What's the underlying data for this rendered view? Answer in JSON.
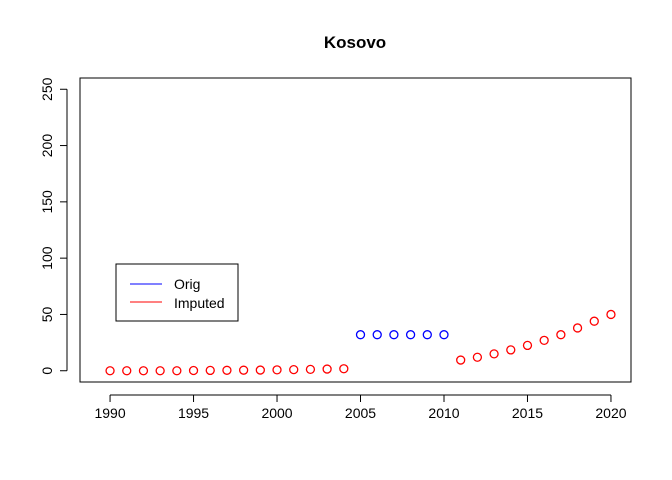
{
  "chart_data": {
    "type": "scatter",
    "title": "Kosovo",
    "xlabel": "",
    "ylabel": "",
    "xlim": [
      1988.2,
      2021.2
    ],
    "ylim": [
      -10,
      260
    ],
    "x_ticks": [
      1990,
      1995,
      2000,
      2005,
      2010,
      2015,
      2020
    ],
    "y_ticks": [
      0,
      50,
      100,
      150,
      200,
      250
    ],
    "grid": false,
    "legend": {
      "position": "left-center",
      "entries": [
        {
          "label": "Orig",
          "color": "#0000ff"
        },
        {
          "label": "Imputed",
          "color": "#ff0000"
        }
      ]
    },
    "series": [
      {
        "name": "Orig",
        "color": "#0000ff",
        "marker": "open-circle",
        "x": [
          2005,
          2006,
          2007,
          2008,
          2009,
          2010
        ],
        "y": [
          32,
          32,
          32,
          32,
          32,
          32
        ]
      },
      {
        "name": "Imputed",
        "color": "#ff0000",
        "marker": "open-circle",
        "x": [
          1990,
          1991,
          1992,
          1993,
          1994,
          1995,
          1996,
          1997,
          1998,
          1999,
          2000,
          2001,
          2002,
          2003,
          2004,
          2011,
          2012,
          2013,
          2014,
          2015,
          2016,
          2017,
          2018,
          2019,
          2020
        ],
        "y": [
          0,
          0,
          0,
          0,
          0,
          0.2,
          0.3,
          0.4,
          0.5,
          0.6,
          0.8,
          1.0,
          1.2,
          1.5,
          1.8,
          9.5,
          12,
          15,
          18.5,
          22.5,
          27,
          32,
          38,
          44,
          50
        ]
      }
    ]
  }
}
